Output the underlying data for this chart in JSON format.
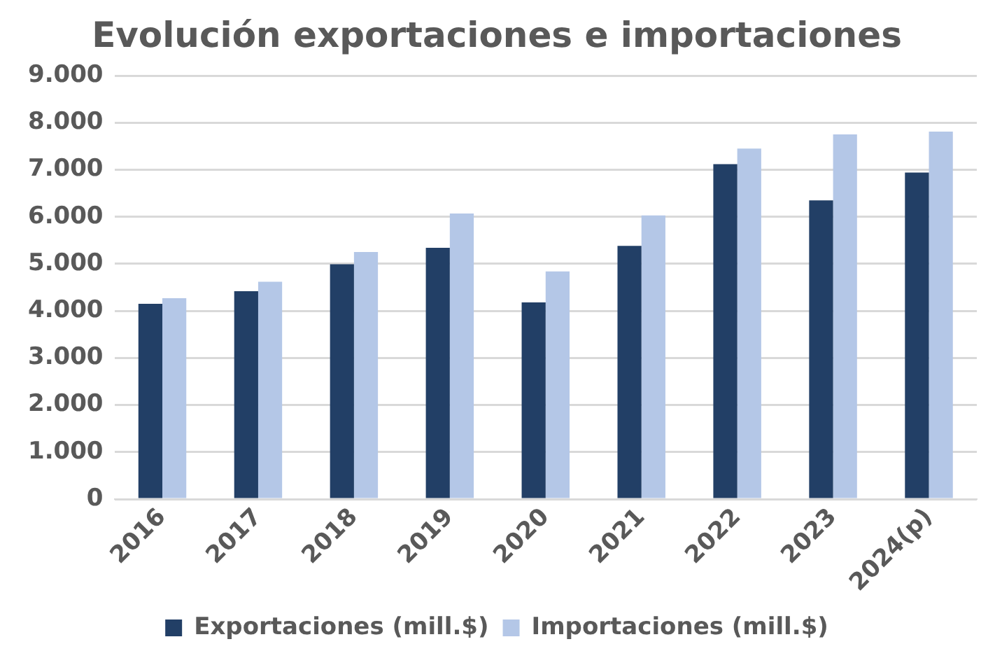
{
  "chart_data": {
    "type": "bar",
    "title": "Evolución exportaciones e importaciones",
    "categories": [
      "2016",
      "2017",
      "2018",
      "2019",
      "2020",
      "2021",
      "2022",
      "2023",
      "2024(p)"
    ],
    "series": [
      {
        "name": "Exportaciones (mill.$)",
        "color": "#223f66",
        "values": [
          4150,
          4420,
          4990,
          5340,
          4180,
          5380,
          7120,
          6350,
          6940
        ]
      },
      {
        "name": "Importaciones (mill.$)",
        "color": "#b4c7e7",
        "values": [
          4270,
          4620,
          5250,
          6070,
          4840,
          6030,
          7450,
          7750,
          7810
        ]
      }
    ],
    "ylim": [
      0,
      9000
    ],
    "yticks": [
      {
        "value": 0,
        "label": "0"
      },
      {
        "value": 1000,
        "label": "1.000"
      },
      {
        "value": 2000,
        "label": "2.000"
      },
      {
        "value": 3000,
        "label": "3.000"
      },
      {
        "value": 4000,
        "label": "4.000"
      },
      {
        "value": 5000,
        "label": "5.000"
      },
      {
        "value": 6000,
        "label": "6.000"
      },
      {
        "value": 7000,
        "label": "7.000"
      },
      {
        "value": 8000,
        "label": "8.000"
      },
      {
        "value": 9000,
        "label": "9.000"
      }
    ],
    "grid": "y",
    "legend": "bottom"
  }
}
